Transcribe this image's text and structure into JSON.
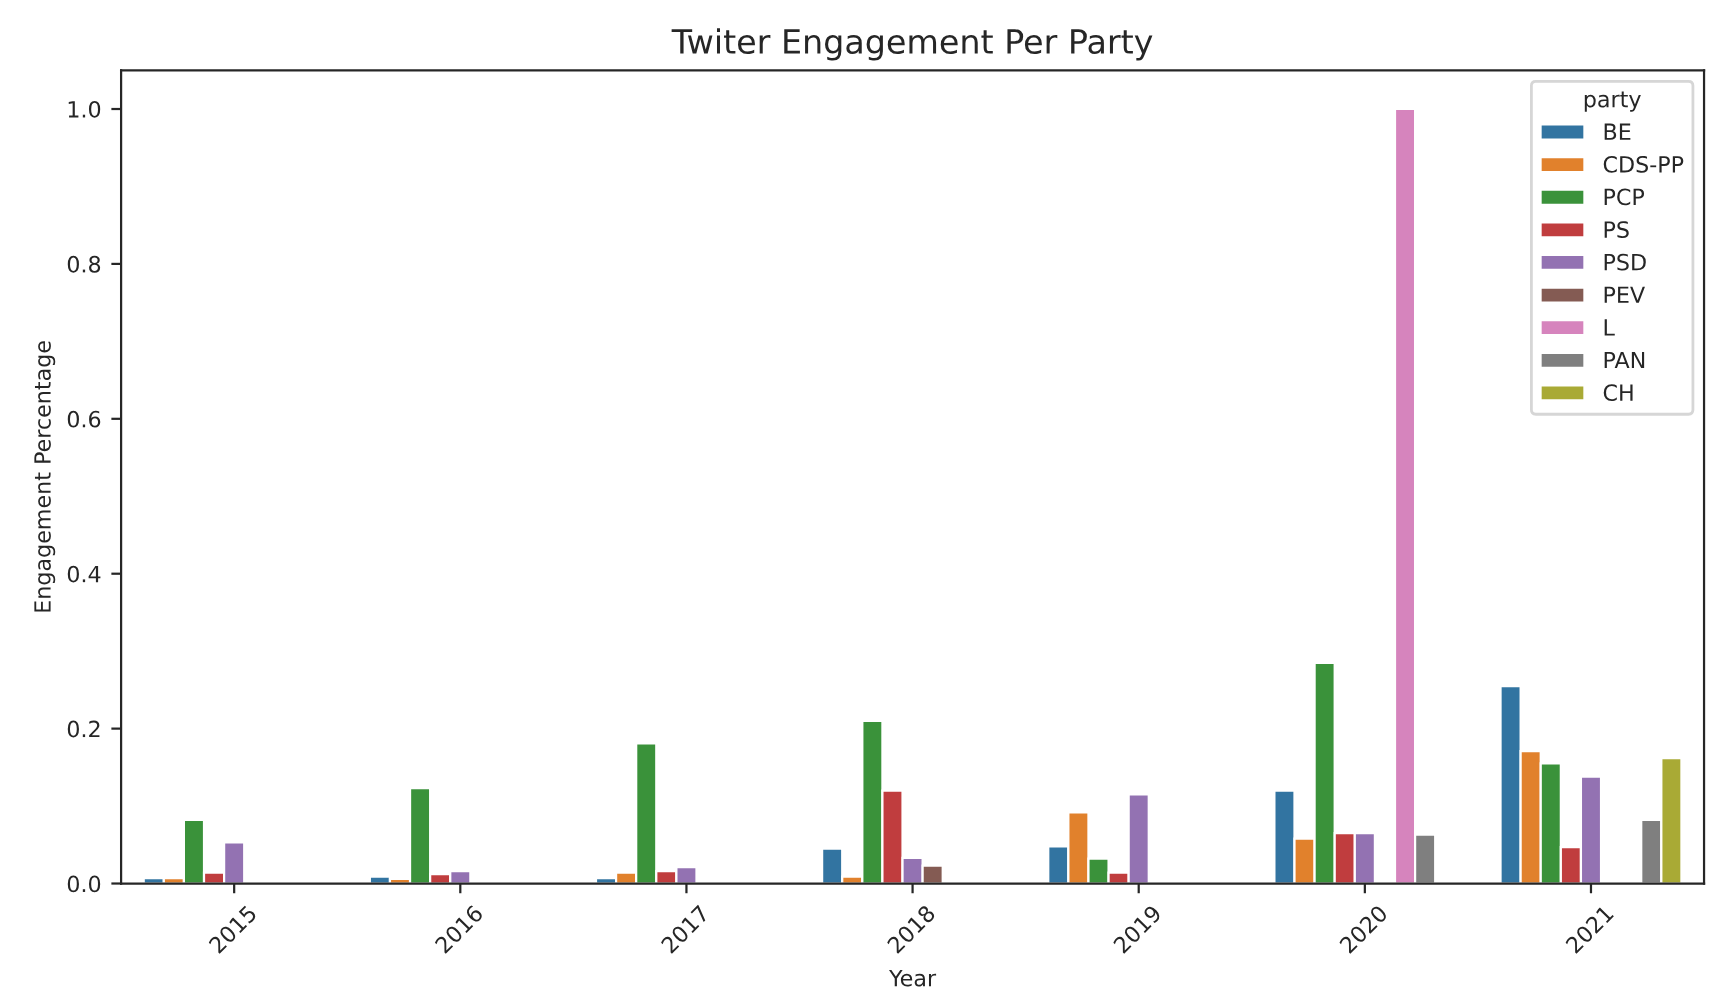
{
  "chart_data": {
    "type": "bar",
    "title": "Twiter Engagement Per Party",
    "xlabel": "Year",
    "ylabel": "Engagement Percentage",
    "legend_title": "party",
    "legend": "top right",
    "categories": [
      "2015",
      "2016",
      "2017",
      "2018",
      "2019",
      "2020",
      "2021"
    ],
    "ylim": [
      0,
      1.05
    ],
    "yticks": [
      {
        "value": 0,
        "label": "0.0"
      },
      {
        "value": 0.2,
        "label": "0.2"
      },
      {
        "value": 0.4,
        "label": "0.4"
      },
      {
        "value": 0.6,
        "label": "0.6"
      },
      {
        "value": 0.8,
        "label": "0.8"
      },
      {
        "value": 1,
        "label": "1.0"
      }
    ],
    "series": [
      {
        "name": "BE",
        "color": "#3274a1",
        "values": [
          0.007,
          0.009,
          0.007,
          0.045,
          0.048,
          0.12,
          0.255
        ]
      },
      {
        "name": "CDS-PP",
        "color": "#e1812c",
        "values": [
          0.007,
          0.006,
          0.014,
          0.009,
          0.092,
          0.058,
          0.171
        ]
      },
      {
        "name": "PCP",
        "color": "#3a923a",
        "values": [
          0.082,
          0.123,
          0.181,
          0.21,
          0.032,
          0.285,
          0.155
        ]
      },
      {
        "name": "PS",
        "color": "#c03d3e",
        "values": [
          0.014,
          0.012,
          0.016,
          0.12,
          0.014,
          0.065,
          0.047
        ]
      },
      {
        "name": "PSD",
        "color": "#9372b2",
        "values": [
          0.053,
          0.016,
          0.021,
          0.033,
          0.115,
          0.065,
          0.138
        ]
      },
      {
        "name": "PEV",
        "color": "#845b53",
        "values": [
          null,
          null,
          null,
          0.023,
          null,
          null,
          null
        ]
      },
      {
        "name": "L",
        "color": "#d684bd",
        "values": [
          null,
          null,
          null,
          null,
          null,
          1.0,
          null
        ]
      },
      {
        "name": "PAN",
        "color": "#7f7f7f",
        "values": [
          null,
          null,
          null,
          null,
          null,
          0.063,
          0.082
        ]
      },
      {
        "name": "CH",
        "color": "#a9aa35",
        "values": [
          null,
          null,
          null,
          null,
          null,
          null,
          0.162
        ]
      }
    ]
  }
}
